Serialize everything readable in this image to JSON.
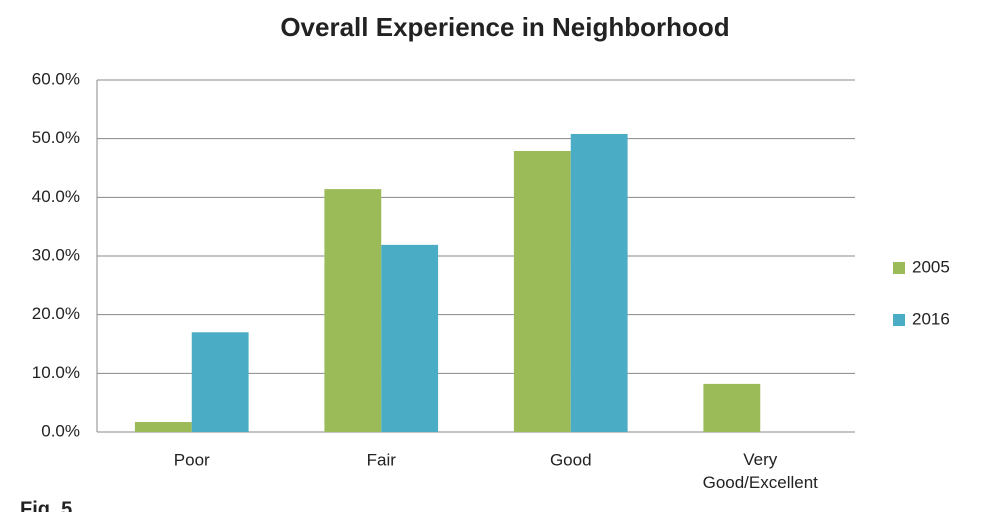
{
  "chart_data": {
    "type": "bar",
    "title": "Overall Experience in Neighborhood",
    "categories": [
      "Poor",
      "Fair",
      "Good",
      "Very Good/Excellent"
    ],
    "series": [
      {
        "name": "2005",
        "color": "#9bbb59",
        "values": [
          1.7,
          41.4,
          47.9,
          8.2
        ]
      },
      {
        "name": "2016",
        "color": "#4bacc6",
        "values": [
          17.0,
          31.9,
          50.8,
          0
        ]
      }
    ],
    "ylim": [
      0,
      60
    ],
    "yticks": [
      {
        "value": 0,
        "label": "0.0%"
      },
      {
        "value": 10,
        "label": "10.0%"
      },
      {
        "value": 20,
        "label": "20.0%"
      },
      {
        "value": 30,
        "label": "30.0%"
      },
      {
        "value": 40,
        "label": "40.0%"
      },
      {
        "value": 50,
        "label": "50.0%"
      },
      {
        "value": 60,
        "label": "60.0%"
      }
    ],
    "grid": true,
    "legend": "right",
    "caption": "Fig. 5"
  }
}
